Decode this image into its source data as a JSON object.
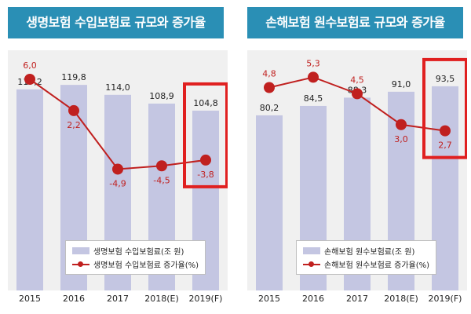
{
  "colors": {
    "title_bar": "#2a8fb5",
    "plot_bg": "#f0f0f0",
    "bar": "#c4c6e2",
    "line": "#c0201f",
    "highlight_box": "#e02020",
    "text": "#222222"
  },
  "chart_data": [
    {
      "type": "bar",
      "title": "생명보험 수입보험료 규모와 증가율",
      "categories": [
        "2015",
        "2016",
        "2017",
        "2018(E)",
        "2019(F)"
      ],
      "ylim": [
        0,
        140
      ],
      "line_ylim": [
        -12,
        8
      ],
      "highlight_category": "2019(F)",
      "series": [
        {
          "name": "생명보험 수입보험료(조 원)",
          "kind": "bar",
          "values": [
            117.2,
            119.8,
            114.0,
            108.9,
            104.8
          ],
          "labels": [
            "117,2",
            "119,8",
            "114,0",
            "108,9",
            "104,8"
          ]
        },
        {
          "name": "생명보험 수입보험료 증가율(%)",
          "kind": "line",
          "values": [
            6.0,
            2.2,
            -4.9,
            -4.5,
            -3.8
          ],
          "labels": [
            "6,0",
            "2,2",
            "-4,9",
            "-4,5",
            "-3,8"
          ]
        }
      ]
    },
    {
      "type": "bar",
      "title": "손해보험 원수보험료 규모와 증가율",
      "categories": [
        "2015",
        "2016",
        "2017",
        "2018(E)",
        "2019(F)"
      ],
      "ylim": [
        0,
        110
      ],
      "line_ylim": [
        -2,
        6
      ],
      "highlight_category": "2019(F)",
      "series": [
        {
          "name": "손해보험 원수보험료(조 원)",
          "kind": "bar",
          "values": [
            80.2,
            84.5,
            88.3,
            91.0,
            93.5
          ],
          "labels": [
            "80,2",
            "84,5",
            "88,3",
            "91,0",
            "93,5"
          ]
        },
        {
          "name": "손해보험 원수보험료 증가율(%)",
          "kind": "line",
          "values": [
            4.8,
            5.3,
            4.5,
            3.0,
            2.7
          ],
          "labels": [
            "4,8",
            "5,3",
            "4,5",
            "3,0",
            "2,7"
          ]
        }
      ]
    }
  ]
}
